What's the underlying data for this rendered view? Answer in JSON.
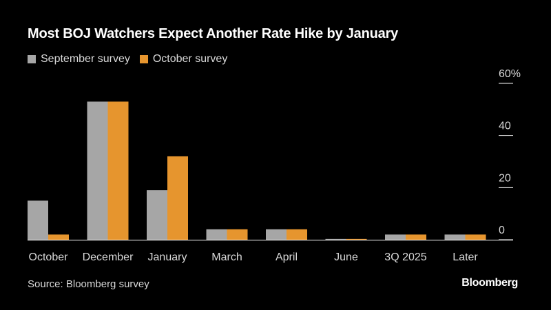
{
  "chart_data": {
    "type": "bar",
    "title": "Most BOJ Watchers Expect Another Rate Hike by January",
    "categories": [
      "October",
      "December",
      "January",
      "March",
      "April",
      "June",
      "3Q 2025",
      "Later"
    ],
    "series": [
      {
        "name": "September survey",
        "color": "#a6a6a6",
        "values": [
          15,
          53,
          19,
          4,
          4,
          0.3,
          2,
          2
        ]
      },
      {
        "name": "October survey",
        "color": "#e6952e",
        "values": [
          2,
          53,
          32,
          4,
          4,
          0.3,
          2,
          2
        ]
      }
    ],
    "yticks": [
      {
        "value": 60,
        "label": "60%"
      },
      {
        "value": 40,
        "label": "40"
      },
      {
        "value": 20,
        "label": "20"
      },
      {
        "value": 0,
        "label": "0"
      }
    ],
    "ylim": [
      0,
      60
    ],
    "xlabel": "",
    "ylabel": ""
  },
  "footer": {
    "source": "Source: Bloomberg survey",
    "brand": "Bloomberg"
  }
}
